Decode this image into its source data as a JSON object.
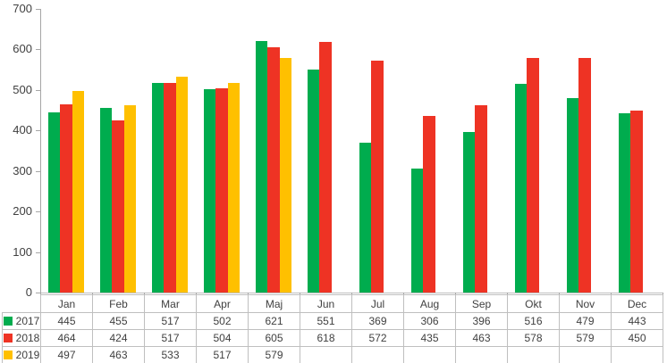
{
  "chart_data": {
    "type": "bar",
    "title": "",
    "xlabel": "",
    "ylabel": "",
    "categories": [
      "Jan",
      "Feb",
      "Mar",
      "Apr",
      "Maj",
      "Jun",
      "Jul",
      "Aug",
      "Sep",
      "Okt",
      "Nov",
      "Dec"
    ],
    "series": [
      {
        "name": "2017",
        "color": "#00ac4e",
        "values": [
          445,
          455,
          517,
          502,
          621,
          551,
          369,
          306,
          396,
          516,
          479,
          443
        ]
      },
      {
        "name": "2018",
        "color": "#ee3324",
        "values": [
          464,
          424,
          517,
          504,
          605,
          618,
          572,
          435,
          463,
          578,
          579,
          450
        ]
      },
      {
        "name": "2019",
        "color": "#ffc000",
        "values": [
          497,
          463,
          533,
          517,
          579,
          null,
          null,
          null,
          null,
          null,
          null,
          null
        ]
      }
    ],
    "ylim": [
      0,
      700
    ],
    "yticks": [
      0,
      100,
      200,
      300,
      400,
      500,
      600,
      700
    ],
    "grid": false,
    "legend_position": "data-table-left-column",
    "data_table_shown": true
  },
  "colors": {
    "axis_line": "#a6a6a6",
    "table_border": "#bfbfbf",
    "text": "#404040",
    "background": "#ffffff"
  }
}
